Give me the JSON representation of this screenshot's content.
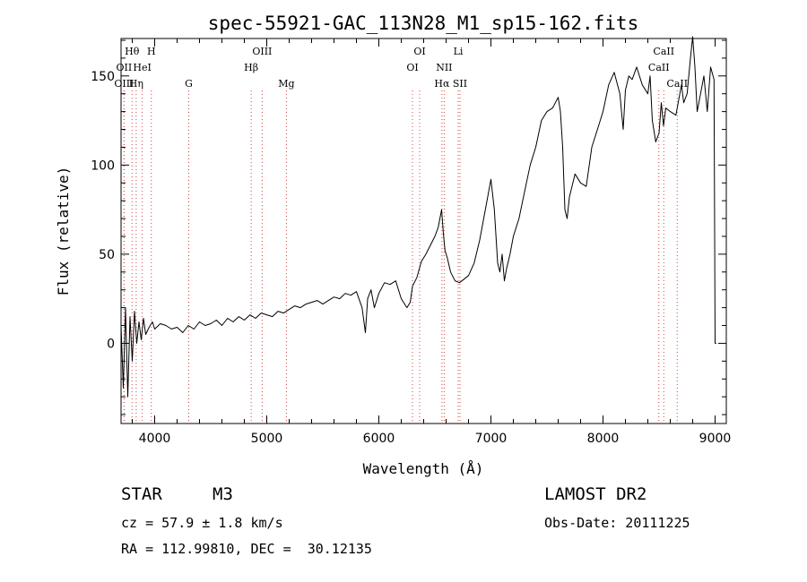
{
  "chart_data": {
    "type": "line",
    "title": "spec-55921-GAC_113N28_M1_sp15-162.fits",
    "xlabel": "Wavelength (Å)",
    "ylabel": "Flux (relative)",
    "xlim": [
      3700,
      9100
    ],
    "ylim": [
      -45,
      171
    ],
    "x_ticks": [
      4000,
      5000,
      6000,
      7000,
      8000,
      9000
    ],
    "y_ticks": [
      0,
      50,
      100,
      150
    ],
    "grid": false,
    "series": [
      {
        "x": [
          3700,
          3720,
          3740,
          3760,
          3780,
          3800,
          3820,
          3840,
          3860,
          3880,
          3900,
          3920,
          3950,
          3980,
          4000,
          4050,
          4100,
          4150,
          4200,
          4250,
          4300,
          4350,
          4400,
          4450,
          4500,
          4550,
          4600,
          4650,
          4700,
          4750,
          4800,
          4850,
          4900,
          4950,
          5000,
          5050,
          5100,
          5150,
          5200,
          5250,
          5300,
          5350,
          5400,
          5450,
          5500,
          5550,
          5600,
          5650,
          5700,
          5750,
          5800,
          5850,
          5880,
          5900,
          5930,
          5960,
          6000,
          6050,
          6100,
          6150,
          6200,
          6250,
          6280,
          6300,
          6340,
          6380,
          6420,
          6460,
          6500,
          6530,
          6560,
          6575,
          6590,
          6610,
          6640,
          6680,
          6720,
          6760,
          6800,
          6850,
          6900,
          6950,
          7000,
          7030,
          7060,
          7080,
          7100,
          7120,
          7140,
          7170,
          7200,
          7250,
          7300,
          7350,
          7400,
          7450,
          7500,
          7550,
          7600,
          7620,
          7640,
          7660,
          7680,
          7700,
          7750,
          7800,
          7850,
          7900,
          7950,
          8000,
          8050,
          8100,
          8150,
          8180,
          8200,
          8230,
          8260,
          8300,
          8350,
          8400,
          8420,
          8440,
          8470,
          8500,
          8520,
          8540,
          8560,
          8600,
          8650,
          8700,
          8720,
          8750,
          8780,
          8800,
          8820,
          8840,
          8870,
          8900,
          8930,
          8960,
          8990,
          9000,
          9010
        ],
        "y": [
          10,
          -25,
          20,
          -30,
          15,
          -10,
          18,
          0,
          12,
          2,
          14,
          5,
          9,
          12,
          8,
          11,
          10,
          8,
          9,
          6,
          10,
          8,
          12,
          10,
          11,
          13,
          10,
          14,
          12,
          15,
          13,
          16,
          14,
          17,
          16,
          15,
          18,
          17,
          19,
          21,
          20,
          22,
          23,
          24,
          22,
          24,
          26,
          25,
          28,
          27,
          29,
          20,
          6,
          25,
          30,
          20,
          28,
          34,
          33,
          35,
          25,
          20,
          23,
          32,
          37,
          46,
          50,
          55,
          60,
          65,
          75,
          62,
          52,
          48,
          40,
          35,
          34,
          36,
          38,
          45,
          58,
          75,
          92,
          75,
          45,
          40,
          50,
          35,
          42,
          50,
          60,
          70,
          85,
          100,
          110,
          125,
          130,
          132,
          138,
          130,
          110,
          75,
          70,
          82,
          95,
          90,
          88,
          110,
          120,
          130,
          145,
          152,
          140,
          120,
          142,
          150,
          148,
          155,
          145,
          140,
          150,
          125,
          113,
          118,
          135,
          122,
          132,
          130,
          128,
          145,
          135,
          140,
          160,
          172,
          155,
          130,
          140,
          150,
          130,
          155,
          148,
          0,
          0
        ]
      }
    ],
    "spectral_lines": [
      {
        "label": "Hθ",
        "x": 3798,
        "row": 0
      },
      {
        "label": "H",
        "x": 3970,
        "row": 0
      },
      {
        "label": "OII",
        "x": 3727,
        "row": 1
      },
      {
        "label": "HeI",
        "x": 3889,
        "row": 1
      },
      {
        "label": "OIII",
        "x": 3727,
        "row": 2
      },
      {
        "label": "Hη",
        "x": 3835,
        "row": 2
      },
      {
        "label": "G",
        "x": 4304,
        "row": 2
      },
      {
        "label": "OIII",
        "x": 4959,
        "row": 0
      },
      {
        "label": "Hβ",
        "x": 4861,
        "row": 1
      },
      {
        "label": "Mg",
        "x": 5175,
        "row": 2
      },
      {
        "label": "OI",
        "x": 6364,
        "row": 0
      },
      {
        "label": "OI",
        "x": 6300,
        "row": 1
      },
      {
        "label": "Li",
        "x": 6708,
        "row": 0
      },
      {
        "label": "NII",
        "x": 6583,
        "row": 1
      },
      {
        "label": "Hα",
        "x": 6563,
        "row": 2
      },
      {
        "label": "SII",
        "x": 6724,
        "row": 2
      },
      {
        "label": "CaII",
        "x": 8542,
        "row": 0
      },
      {
        "label": "CaII",
        "x": 8498,
        "row": 1
      },
      {
        "label": "CaII",
        "x": 8662,
        "row": 2
      }
    ],
    "colors": {
      "line": "#000000",
      "marker": "#d04040"
    }
  },
  "info": {
    "object_class": "STAR",
    "subclass": "M3",
    "survey": "LAMOST DR2",
    "velocity": "cz = 57.9 ± 1.8 km/s",
    "obs_date": "Obs-Date: 20111225",
    "coords": "RA = 112.99810, DEC =  30.12135"
  }
}
